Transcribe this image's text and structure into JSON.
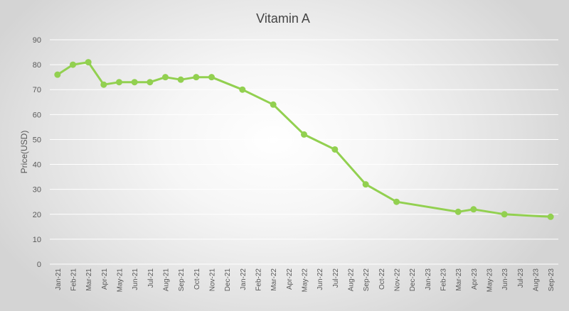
{
  "chart_data": {
    "type": "line",
    "title": "Vitamin A",
    "xlabel": "",
    "ylabel": "Price(USD)",
    "ylim": [
      0,
      90
    ],
    "yticks": [
      0,
      10,
      20,
      30,
      40,
      50,
      60,
      70,
      80,
      90
    ],
    "grid": true,
    "legend": "none",
    "line_color": "#92d050",
    "categories": [
      "Jan-21",
      "Feb-21",
      "Mar-21",
      "Apr-21",
      "May-21",
      "Jun-21",
      "Jul-21",
      "Aug-21",
      "Sep-21",
      "Oct-21",
      "Nov-21",
      "Dec-21",
      "Jan-22",
      "Feb-22",
      "Mar-22",
      "Apr-22",
      "May-22",
      "Jun-22",
      "Jul-22",
      "Aug-22",
      "Sep-22",
      "Oct-22",
      "Nov-22",
      "Dec-22",
      "Jan-23",
      "Feb-23",
      "Mar-23",
      "Apr-23",
      "May-23",
      "Jun-23",
      "Jul-23",
      "Aug-23",
      "Sep-23"
    ],
    "series": [
      {
        "name": "Vitamin A",
        "points": [
          {
            "x": "Jan-21",
            "y": 76
          },
          {
            "x": "Feb-21",
            "y": 80
          },
          {
            "x": "Mar-21",
            "y": 81
          },
          {
            "x": "Apr-21",
            "y": 72
          },
          {
            "x": "May-21",
            "y": 73
          },
          {
            "x": "Jun-21",
            "y": 73
          },
          {
            "x": "Jul-21",
            "y": 73
          },
          {
            "x": "Aug-21",
            "y": 75
          },
          {
            "x": "Sep-21",
            "y": 74
          },
          {
            "x": "Oct-21",
            "y": 75
          },
          {
            "x": "Nov-21",
            "y": 75
          },
          {
            "x": "Jan-22",
            "y": 70
          },
          {
            "x": "Mar-22",
            "y": 64
          },
          {
            "x": "May-22",
            "y": 52
          },
          {
            "x": "Jul-22",
            "y": 46
          },
          {
            "x": "Sep-22",
            "y": 32
          },
          {
            "x": "Nov-22",
            "y": 25
          },
          {
            "x": "Mar-23",
            "y": 21
          },
          {
            "x": "Apr-23",
            "y": 22
          },
          {
            "x": "Jun-23",
            "y": 20
          },
          {
            "x": "Sep-23",
            "y": 19
          }
        ]
      }
    ]
  }
}
